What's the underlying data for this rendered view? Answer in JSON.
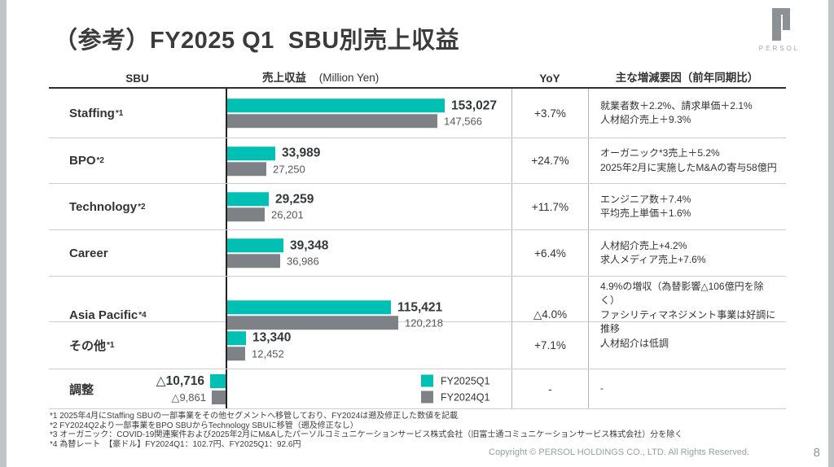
{
  "slide": {
    "title": "（参考）FY2025 Q1  SBU別売上収益",
    "logo_text": "PERSOL",
    "copyright": "Copyright © PERSOL HOLDINGS CO., LTD. All Rights Reserved.",
    "page_number": "8"
  },
  "table_headers": {
    "sbu": "SBU",
    "revenue": "売上収益",
    "revenue_unit": "(Million Yen)",
    "yoy": "YoY",
    "factors": "主な増減要因（前年同期比）"
  },
  "legend": {
    "fy2025q1": "FY2025Q1",
    "fy2024q1": "FY2024Q1"
  },
  "colors": {
    "fy2025q1": "#00BFB3",
    "fy2024q1": "#7E8287"
  },
  "chart_data": {
    "type": "bar",
    "orientation": "horizontal",
    "value_unit": "Million Yen",
    "series_names": [
      "FY2025Q1",
      "FY2024Q1"
    ],
    "categories": [
      "Staffing",
      "BPO",
      "Technology",
      "Career",
      "Asia Pacific",
      "その他",
      "調整"
    ],
    "rows": [
      {
        "sbu": "Staffing",
        "sup": "*1",
        "values": {
          "fy2025q1": 153027,
          "fy2024q1": 147566
        },
        "labels": {
          "fy2025q1": "153,027",
          "fy2024q1": "147,566"
        },
        "yoy": "+3.7%",
        "factors": "就業者数＋2.2%、請求単価＋2.1%\n人材紹介売上＋9.3%"
      },
      {
        "sbu": "BPO",
        "sup": "*2",
        "values": {
          "fy2025q1": 33989,
          "fy2024q1": 27250
        },
        "labels": {
          "fy2025q1": "33,989",
          "fy2024q1": "27,250"
        },
        "yoy": "+24.7%",
        "factors": "オーガニック*3売上＋5.2%\n2025年2月に実施したM&Aの寄与58億円"
      },
      {
        "sbu": "Technology",
        "sup": "*2",
        "values": {
          "fy2025q1": 29259,
          "fy2024q1": 26201
        },
        "labels": {
          "fy2025q1": "29,259",
          "fy2024q1": "26,201"
        },
        "yoy": "+11.7%",
        "factors": "エンジニア数＋7.4%\n平均売上単価＋1.6%"
      },
      {
        "sbu": "Career",
        "sup": "",
        "values": {
          "fy2025q1": 39348,
          "fy2024q1": 36986
        },
        "labels": {
          "fy2025q1": "39,348",
          "fy2024q1": "36,986"
        },
        "yoy": "+6.4%",
        "factors": "人材紹介売上+4.2%\n求人メディア売上+7.6%"
      },
      {
        "sbu": "Asia Pacific",
        "sup": "*4",
        "values": {
          "fy2025q1": 115421,
          "fy2024q1": 120218
        },
        "labels": {
          "fy2025q1": "115,421",
          "fy2024q1": "120,218"
        },
        "yoy": "△4.0%",
        "factors": "4.9%の増収（為替影響△106億円を除く）\nファシリティマネジメント事業は好調に推移\n人材紹介は低調"
      },
      {
        "sbu": "その他",
        "sup": "*1",
        "values": {
          "fy2025q1": 13340,
          "fy2024q1": 12452
        },
        "labels": {
          "fy2025q1": "13,340",
          "fy2024q1": "12,452"
        },
        "yoy": "+7.1%",
        "factors": "-"
      },
      {
        "sbu": "調整",
        "sup": "",
        "values": {
          "fy2025q1": -10716,
          "fy2024q1": -9861
        },
        "labels": {
          "fy2025q1": "△10,716",
          "fy2024q1": "△9,861"
        },
        "yoy": "-",
        "factors": "-"
      }
    ]
  },
  "footnotes": {
    "line1": "*1 2025年4月にStaffing SBUの一部事業をその他セグメントへ移管しており、FY2024は遡及修正した数値を記載",
    "line2": "*2 FY2024Q2より一部事業をBPO SBUからTechnology SBUに移管（遡及修正なし）",
    "line3": "*3 オーガニック：COVID-19関連案件および2025年2月にM&Aしたパーソルコミュニケーションサービス株式会社（旧富士通コミュニケーションサービス株式会社）分を除く",
    "line4": "*4 為替レート　【豪ドル】FY2024Q1：102.7円、FY2025Q1：92.6円"
  }
}
